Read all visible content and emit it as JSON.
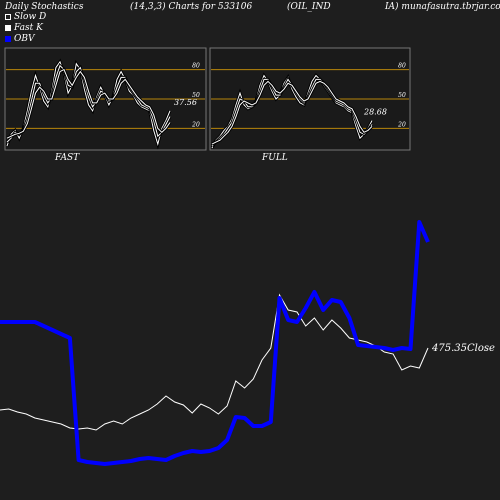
{
  "header": {
    "title": "Daily Stochastics",
    "params": "(14,3,3) Charts for 533106",
    "symbol": "(OIL_IND",
    "site": "IA) munafasutra.tbrjar.com"
  },
  "legend": [
    {
      "label": "Slow  D",
      "icon": "hollow-square"
    },
    {
      "label": "Fast K",
      "icon": "filled-square"
    },
    {
      "label": "OBV",
      "icon": "blue-square"
    }
  ],
  "colors": {
    "background": "#1e1e1e",
    "panel": "#1a1a1a",
    "level_line": "#b8860b",
    "obv": "#0000ff",
    "price": "#ffffff"
  },
  "chart_data": [
    {
      "type": "line",
      "panel": "FAST",
      "ylim": [
        0,
        100
      ],
      "levels": [
        20,
        50,
        80
      ],
      "level_labels": [
        "80",
        "50",
        "20"
      ],
      "last_value_label": "37.56",
      "series": [
        {
          "values": [
            2,
            14,
            18,
            10,
            20,
            38,
            58,
            74,
            62,
            48,
            42,
            58,
            82,
            88,
            76,
            56,
            64,
            86,
            80,
            60,
            44,
            38,
            52,
            62,
            54,
            44,
            52,
            70,
            78,
            70,
            58,
            54,
            46,
            42,
            40,
            38,
            18,
            4,
            20,
            28,
            38
          ]
        },
        {
          "values": [
            6,
            10,
            16,
            14,
            18,
            30,
            48,
            66,
            66,
            54,
            46,
            52,
            72,
            84,
            80,
            64,
            62,
            78,
            82,
            68,
            52,
            42,
            48,
            58,
            56,
            48,
            50,
            62,
            72,
            72,
            62,
            56,
            50,
            44,
            42,
            40,
            28,
            12,
            16,
            24,
            32
          ]
        },
        {
          "values": [
            10,
            12,
            14,
            15,
            17,
            25,
            40,
            56,
            62,
            58,
            50,
            50,
            64,
            78,
            80,
            70,
            64,
            72,
            78,
            72,
            58,
            46,
            46,
            54,
            56,
            50,
            50,
            56,
            66,
            70,
            64,
            58,
            52,
            48,
            44,
            42,
            34,
            20,
            16,
            20,
            26
          ]
        }
      ]
    },
    {
      "type": "line",
      "panel": "FULL",
      "ylim": [
        0,
        100
      ],
      "levels": [
        20,
        50,
        80
      ],
      "level_labels": [
        "80",
        "50",
        "20"
      ],
      "last_value_label": "28.68",
      "series": [
        {
          "values": [
            0,
            8,
            12,
            18,
            22,
            30,
            44,
            56,
            44,
            40,
            42,
            48,
            64,
            74,
            68,
            58,
            50,
            54,
            66,
            72,
            60,
            52,
            46,
            44,
            56,
            68,
            74,
            70,
            64,
            58,
            52,
            46,
            44,
            42,
            38,
            36,
            22,
            10,
            14,
            20,
            28
          ]
        },
        {
          "values": [
            2,
            6,
            10,
            14,
            20,
            26,
            38,
            50,
            48,
            42,
            42,
            46,
            58,
            70,
            70,
            62,
            54,
            54,
            62,
            70,
            64,
            56,
            50,
            46,
            52,
            62,
            70,
            70,
            66,
            60,
            54,
            48,
            46,
            44,
            40,
            38,
            28,
            16,
            14,
            18,
            24
          ]
        },
        {
          "values": [
            4,
            6,
            8,
            12,
            16,
            22,
            32,
            44,
            48,
            46,
            44,
            46,
            54,
            64,
            68,
            64,
            58,
            56,
            60,
            66,
            64,
            58,
            52,
            48,
            50,
            58,
            66,
            68,
            66,
            62,
            56,
            50,
            48,
            46,
            42,
            40,
            32,
            22,
            16,
            18,
            22
          ]
        }
      ]
    },
    {
      "type": "line",
      "panel": "main",
      "price_label": "475.35Close",
      "series": [
        {
          "name": "OBV",
          "values": [
            322,
            322,
            322,
            322,
            322,
            326,
            330,
            334,
            338,
            460,
            462,
            463,
            464,
            463,
            462,
            461,
            459,
            458,
            459,
            460,
            456,
            453,
            451,
            452,
            451,
            448,
            440,
            417,
            418,
            426,
            426,
            422,
            298,
            320,
            322,
            308,
            292,
            310,
            300,
            302,
            318,
            345,
            346,
            347,
            348,
            350,
            348,
            349,
            222,
            242
          ]
        },
        {
          "name": "Close",
          "values": [
            410,
            409,
            412,
            414,
            418,
            420,
            422,
            424,
            428,
            429,
            428,
            430,
            424,
            421,
            424,
            418,
            414,
            410,
            404,
            396,
            402,
            405,
            413,
            404,
            408,
            414,
            406,
            381,
            388,
            379,
            360,
            348,
            295,
            310,
            312,
            326,
            318,
            330,
            320,
            328,
            338,
            340,
            342,
            346,
            352,
            354,
            370,
            366,
            368,
            348
          ]
        }
      ]
    }
  ]
}
